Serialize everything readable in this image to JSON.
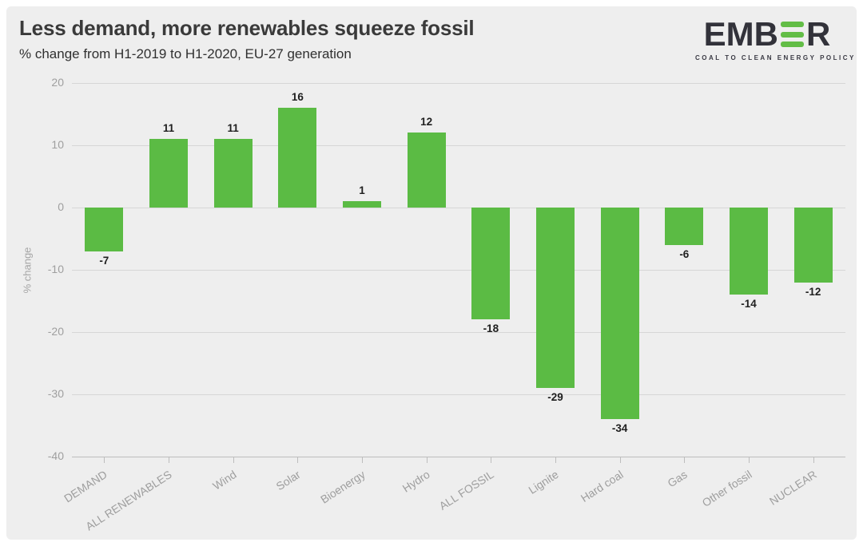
{
  "header": {
    "title": "Less demand, more renewables squeeze fossil",
    "subtitle": "% change from H1-2019 to H1-2020, EU-27 generation"
  },
  "logo": {
    "wordmark_part1": "EMB",
    "wordmark_part2": "R",
    "tagline": "COAL TO CLEAN ENERGY POLICY",
    "green": "#62bd46",
    "dark": "#32323a"
  },
  "chart_data": {
    "type": "bar",
    "title": "Less demand, more renewables squeeze fossil",
    "subtitle": "% change from H1-2019 to H1-2020, EU-27 generation",
    "categories": [
      "DEMAND",
      "ALL RENEWABLES",
      "Wind",
      "Solar",
      "Bioenergy",
      "Hydro",
      "ALL FOSSIL",
      "Lignite",
      "Hard coal",
      "Gas",
      "Other fossil",
      "NUCLEAR"
    ],
    "values": [
      -7,
      11,
      11,
      16,
      1,
      12,
      -18,
      -29,
      -34,
      -6,
      -14,
      -12
    ],
    "xlabel": "",
    "ylabel": "% change",
    "ylim": [
      -40,
      20
    ],
    "yticks": [
      20,
      10,
      0,
      -10,
      -20,
      -30,
      -40
    ],
    "grid": true,
    "legend": false,
    "bar_color": "#5bbb44",
    "value_label_color": "#1f1f1f",
    "background_color": "#eeeeee"
  }
}
